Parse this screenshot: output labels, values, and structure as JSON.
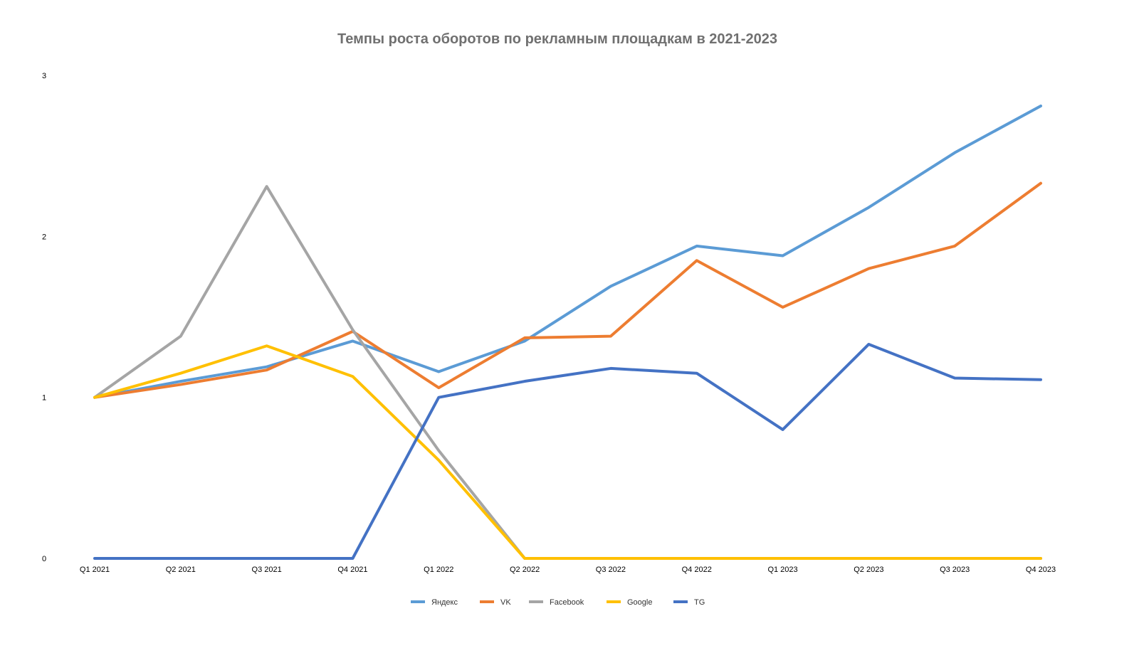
{
  "chart_data": {
    "type": "line",
    "title": "Темпы роста оборотов по рекламным площадкам в 2021-2023",
    "xlabel": "",
    "ylabel": "",
    "categories": [
      "Q1 2021",
      "Q2 2021",
      "Q3 2021",
      "Q4 2021",
      "Q1 2022",
      "Q2 2022",
      "Q3 2022",
      "Q4 2022",
      "Q1 2023",
      "Q2 2023",
      "Q3 2023",
      "Q4 2023"
    ],
    "ylim": [
      0,
      3
    ],
    "yticks": [
      "0",
      "1",
      "2",
      "3"
    ],
    "grid": false,
    "legend_position": "bottom",
    "series": [
      {
        "name": "Яндекс",
        "color": "#5B9BD5",
        "values": [
          1.0,
          1.1,
          1.19,
          1.35,
          1.16,
          1.35,
          1.69,
          1.94,
          1.88,
          2.18,
          2.52,
          2.81
        ]
      },
      {
        "name": "VK",
        "color": "#ED7D31",
        "values": [
          1.0,
          1.08,
          1.17,
          1.41,
          1.06,
          1.37,
          1.38,
          1.85,
          1.56,
          1.8,
          1.94,
          2.33
        ]
      },
      {
        "name": "Facebook",
        "color": "#A5A5A5",
        "values": [
          1.0,
          1.38,
          2.31,
          1.42,
          0.67,
          0,
          0,
          0,
          0,
          0,
          0,
          0
        ]
      },
      {
        "name": "Google",
        "color": "#FFC000",
        "values": [
          1.0,
          1.15,
          1.32,
          1.13,
          0.61,
          0,
          0,
          0,
          0,
          0,
          0,
          0
        ]
      },
      {
        "name": "TG",
        "color": "#4472C4",
        "values": [
          0,
          0,
          0,
          0,
          1.0,
          1.1,
          1.18,
          1.15,
          0.8,
          1.33,
          1.12,
          1.11
        ]
      }
    ]
  }
}
